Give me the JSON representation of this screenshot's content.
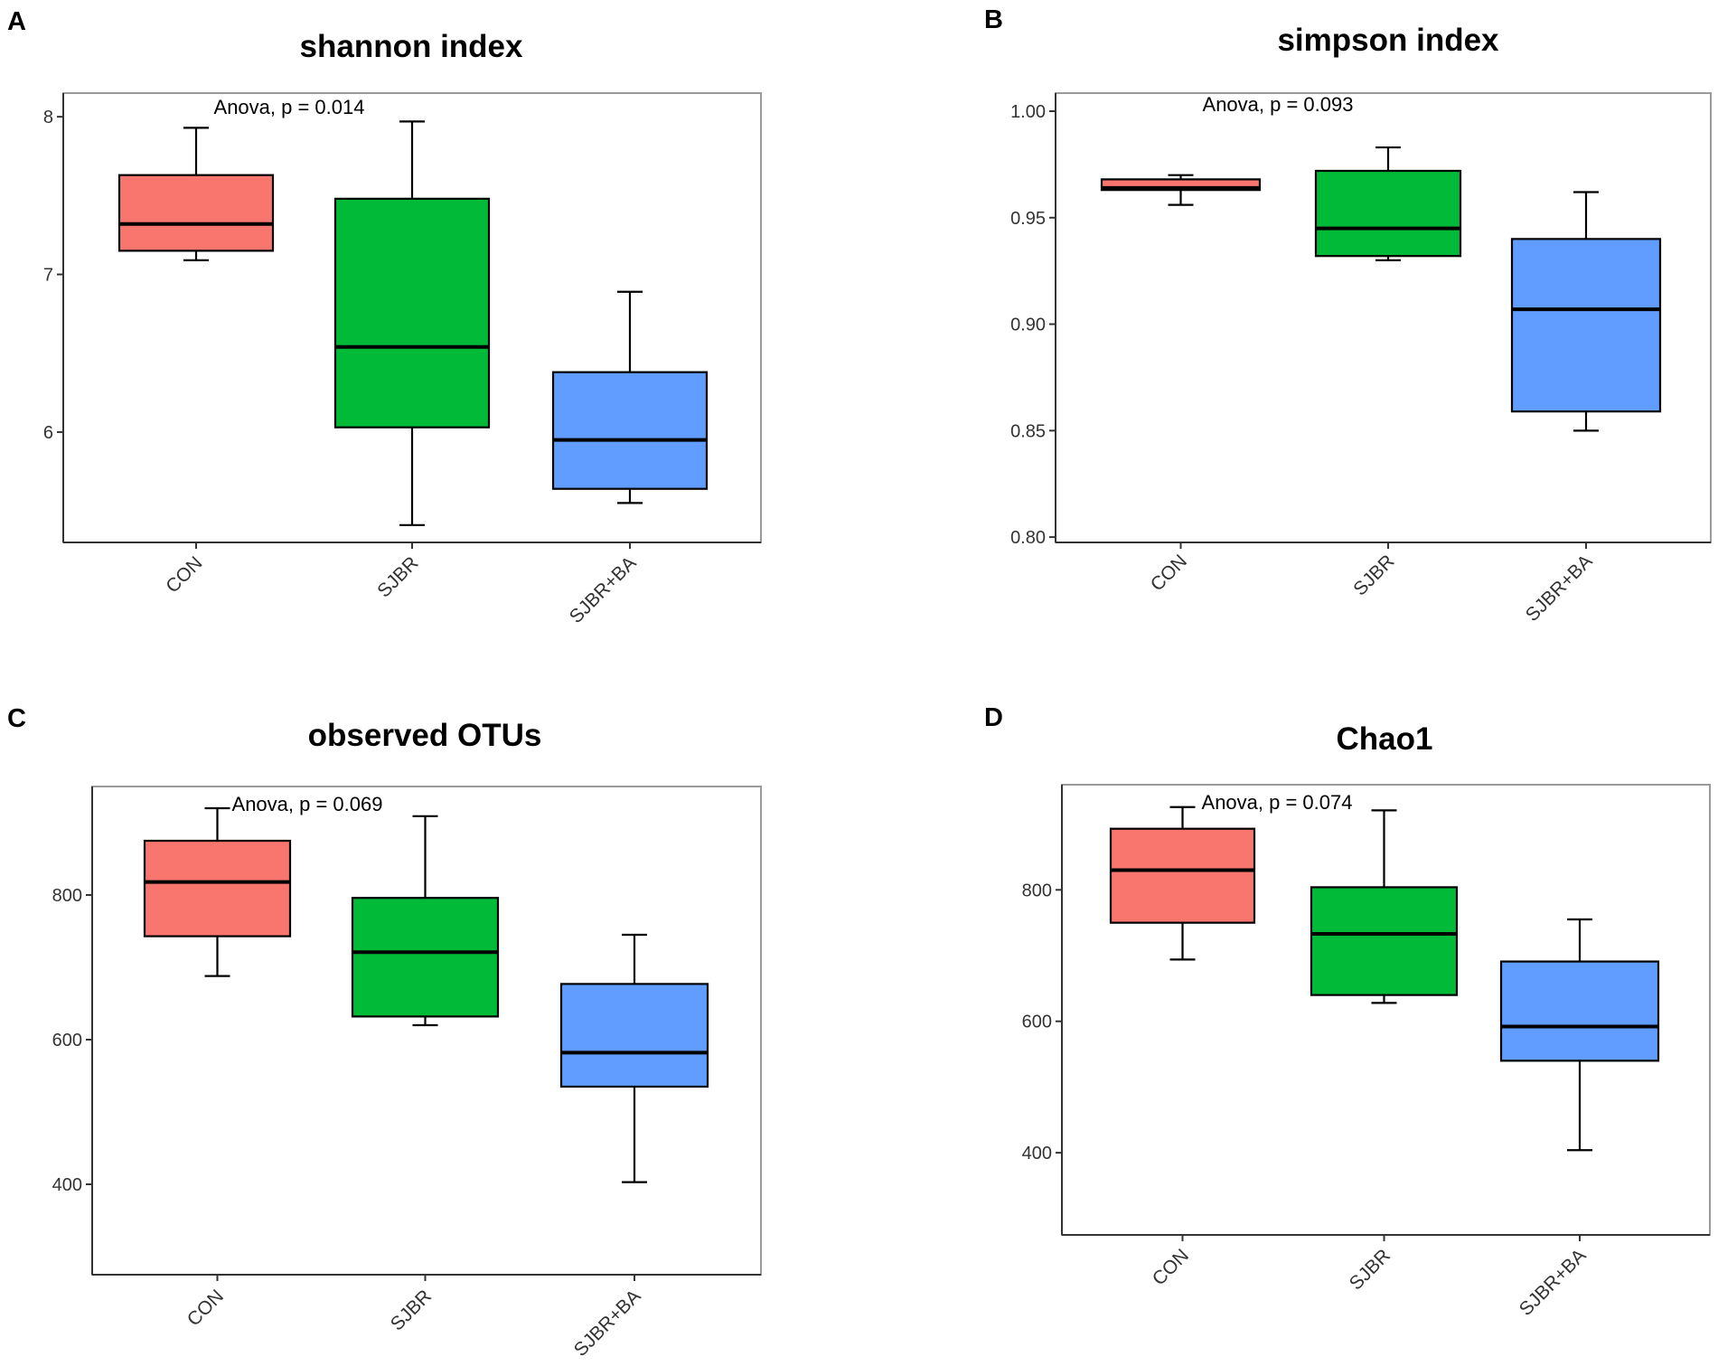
{
  "figure": {
    "panels": [
      "A",
      "B",
      "C",
      "D"
    ]
  },
  "colors": {
    "CON": "#f8766d",
    "SJBR": "#00ba38",
    "SJBR+BA": "#619cff",
    "line": "#000000",
    "axis": "#333333",
    "frame": "#9a9a9a"
  },
  "chart_data": [
    {
      "type": "boxplot",
      "panel": "A",
      "title": "shannon index",
      "annotation": "Anova, p = 0.014",
      "categories": [
        "CON",
        "SJBR",
        "SJBR+BA"
      ],
      "ylim": [
        5.3,
        8.15
      ],
      "yticks": [
        6,
        7,
        8
      ],
      "ytick_labels": [
        "6",
        "7",
        "8"
      ],
      "boxes": [
        {
          "min": 7.09,
          "q1": 7.15,
          "median": 7.32,
          "q3": 7.63,
          "max": 7.93
        },
        {
          "min": 5.41,
          "q1": 6.03,
          "median": 6.54,
          "q3": 7.48,
          "max": 7.97
        },
        {
          "min": 5.55,
          "q1": 5.64,
          "median": 5.95,
          "q3": 6.38,
          "max": 6.89
        }
      ]
    },
    {
      "type": "boxplot",
      "panel": "B",
      "title": "simpson index",
      "annotation": "Anova, p = 0.093",
      "categories": [
        "CON",
        "SJBR",
        "SJBR+BA"
      ],
      "ylim": [
        0.7975,
        1.0085
      ],
      "yticks": [
        0.8,
        0.85,
        0.9,
        0.95,
        1.0
      ],
      "ytick_labels": [
        "0.80",
        "0.85",
        "0.90",
        "0.95",
        "1.00"
      ],
      "boxes": [
        {
          "min": 0.956,
          "q1": 0.963,
          "median": 0.964,
          "q3": 0.968,
          "max": 0.97
        },
        {
          "min": 0.93,
          "q1": 0.932,
          "median": 0.945,
          "q3": 0.972,
          "max": 0.983
        },
        {
          "min": 0.85,
          "q1": 0.859,
          "median": 0.907,
          "q3": 0.94,
          "max": 0.962
        }
      ]
    },
    {
      "type": "boxplot",
      "panel": "C",
      "title": "observed OTUs",
      "annotation": "Anova, p = 0.069",
      "categories": [
        "CON",
        "SJBR",
        "SJBR+BA"
      ],
      "ylim": [
        275,
        950
      ],
      "yticks": [
        400,
        600,
        800
      ],
      "ytick_labels": [
        "400",
        "600",
        "800"
      ],
      "boxes": [
        {
          "min": 688,
          "q1": 743,
          "median": 818,
          "q3": 875,
          "max": 920
        },
        {
          "min": 620,
          "q1": 632,
          "median": 721,
          "q3": 796,
          "max": 909
        },
        {
          "min": 403,
          "q1": 535,
          "median": 582,
          "q3": 677,
          "max": 745
        }
      ]
    },
    {
      "type": "boxplot",
      "panel": "D",
      "title": "Chao1",
      "annotation": "Anova, p = 0.074",
      "categories": [
        "CON",
        "SJBR",
        "SJBR+BA"
      ],
      "ylim": [
        275,
        960
      ],
      "yticks": [
        400,
        600,
        800
      ],
      "ytick_labels": [
        "400",
        "600",
        "800"
      ],
      "boxes": [
        {
          "min": 694,
          "q1": 750,
          "median": 830,
          "q3": 893,
          "max": 926
        },
        {
          "min": 628,
          "q1": 640,
          "median": 733,
          "q3": 804,
          "max": 921
        },
        {
          "min": 404,
          "q1": 540,
          "median": 592,
          "q3": 691,
          "max": 755
        }
      ]
    }
  ]
}
